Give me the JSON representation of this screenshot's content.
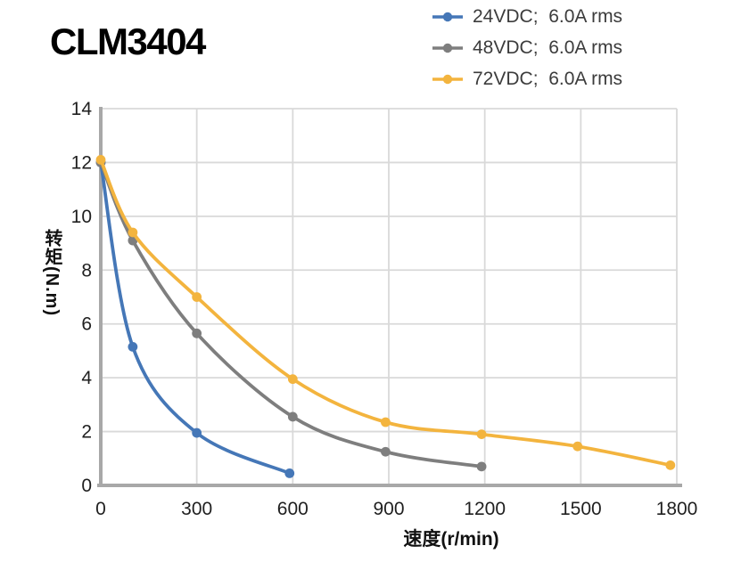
{
  "title": "CLM3404",
  "legend": {
    "position": "top-right",
    "items": [
      {
        "label": "24VDC;  6.0A rms",
        "color": "#4577b7"
      },
      {
        "label": "48VDC;  6.0A rms",
        "color": "#7e7e7e"
      },
      {
        "label": "72VDC;  6.0A rms",
        "color": "#f3b43e"
      }
    ]
  },
  "chart_data": {
    "type": "line",
    "title": "CLM3404",
    "xlabel": "速度(r/min)",
    "ylabel": "转矩(N.m)",
    "xlim": [
      0,
      1800
    ],
    "ylim": [
      0,
      14
    ],
    "x_ticks": [
      0,
      300,
      600,
      900,
      1200,
      1500,
      1800
    ],
    "y_ticks": [
      0,
      2,
      4,
      6,
      8,
      10,
      12,
      14
    ],
    "grid": true,
    "legend_position": "top-right",
    "series": [
      {
        "name": "24VDC;  6.0A rms",
        "color": "#4577b7",
        "points": [
          [
            0,
            12.0
          ],
          [
            100,
            5.15
          ],
          [
            300,
            1.95
          ],
          [
            590,
            0.45
          ]
        ]
      },
      {
        "name": "48VDC;  6.0A rms",
        "color": "#7e7e7e",
        "points": [
          [
            0,
            12.0
          ],
          [
            100,
            9.1
          ],
          [
            300,
            5.65
          ],
          [
            600,
            2.55
          ],
          [
            890,
            1.25
          ],
          [
            1190,
            0.7
          ]
        ]
      },
      {
        "name": "72VDC;  6.0A rms",
        "color": "#f3b43e",
        "points": [
          [
            0,
            12.1
          ],
          [
            100,
            9.4
          ],
          [
            300,
            7.0
          ],
          [
            600,
            3.95
          ],
          [
            890,
            2.35
          ],
          [
            1190,
            1.9
          ],
          [
            1490,
            1.45
          ],
          [
            1780,
            0.75
          ]
        ]
      }
    ]
  },
  "colors": {
    "grid": "#d9d9d9",
    "axis": "#a8a8a8",
    "tick_text": "#1f1f1f",
    "legend_text": "#3c3c3c",
    "title_text": "#000000",
    "background": "#ffffff"
  }
}
